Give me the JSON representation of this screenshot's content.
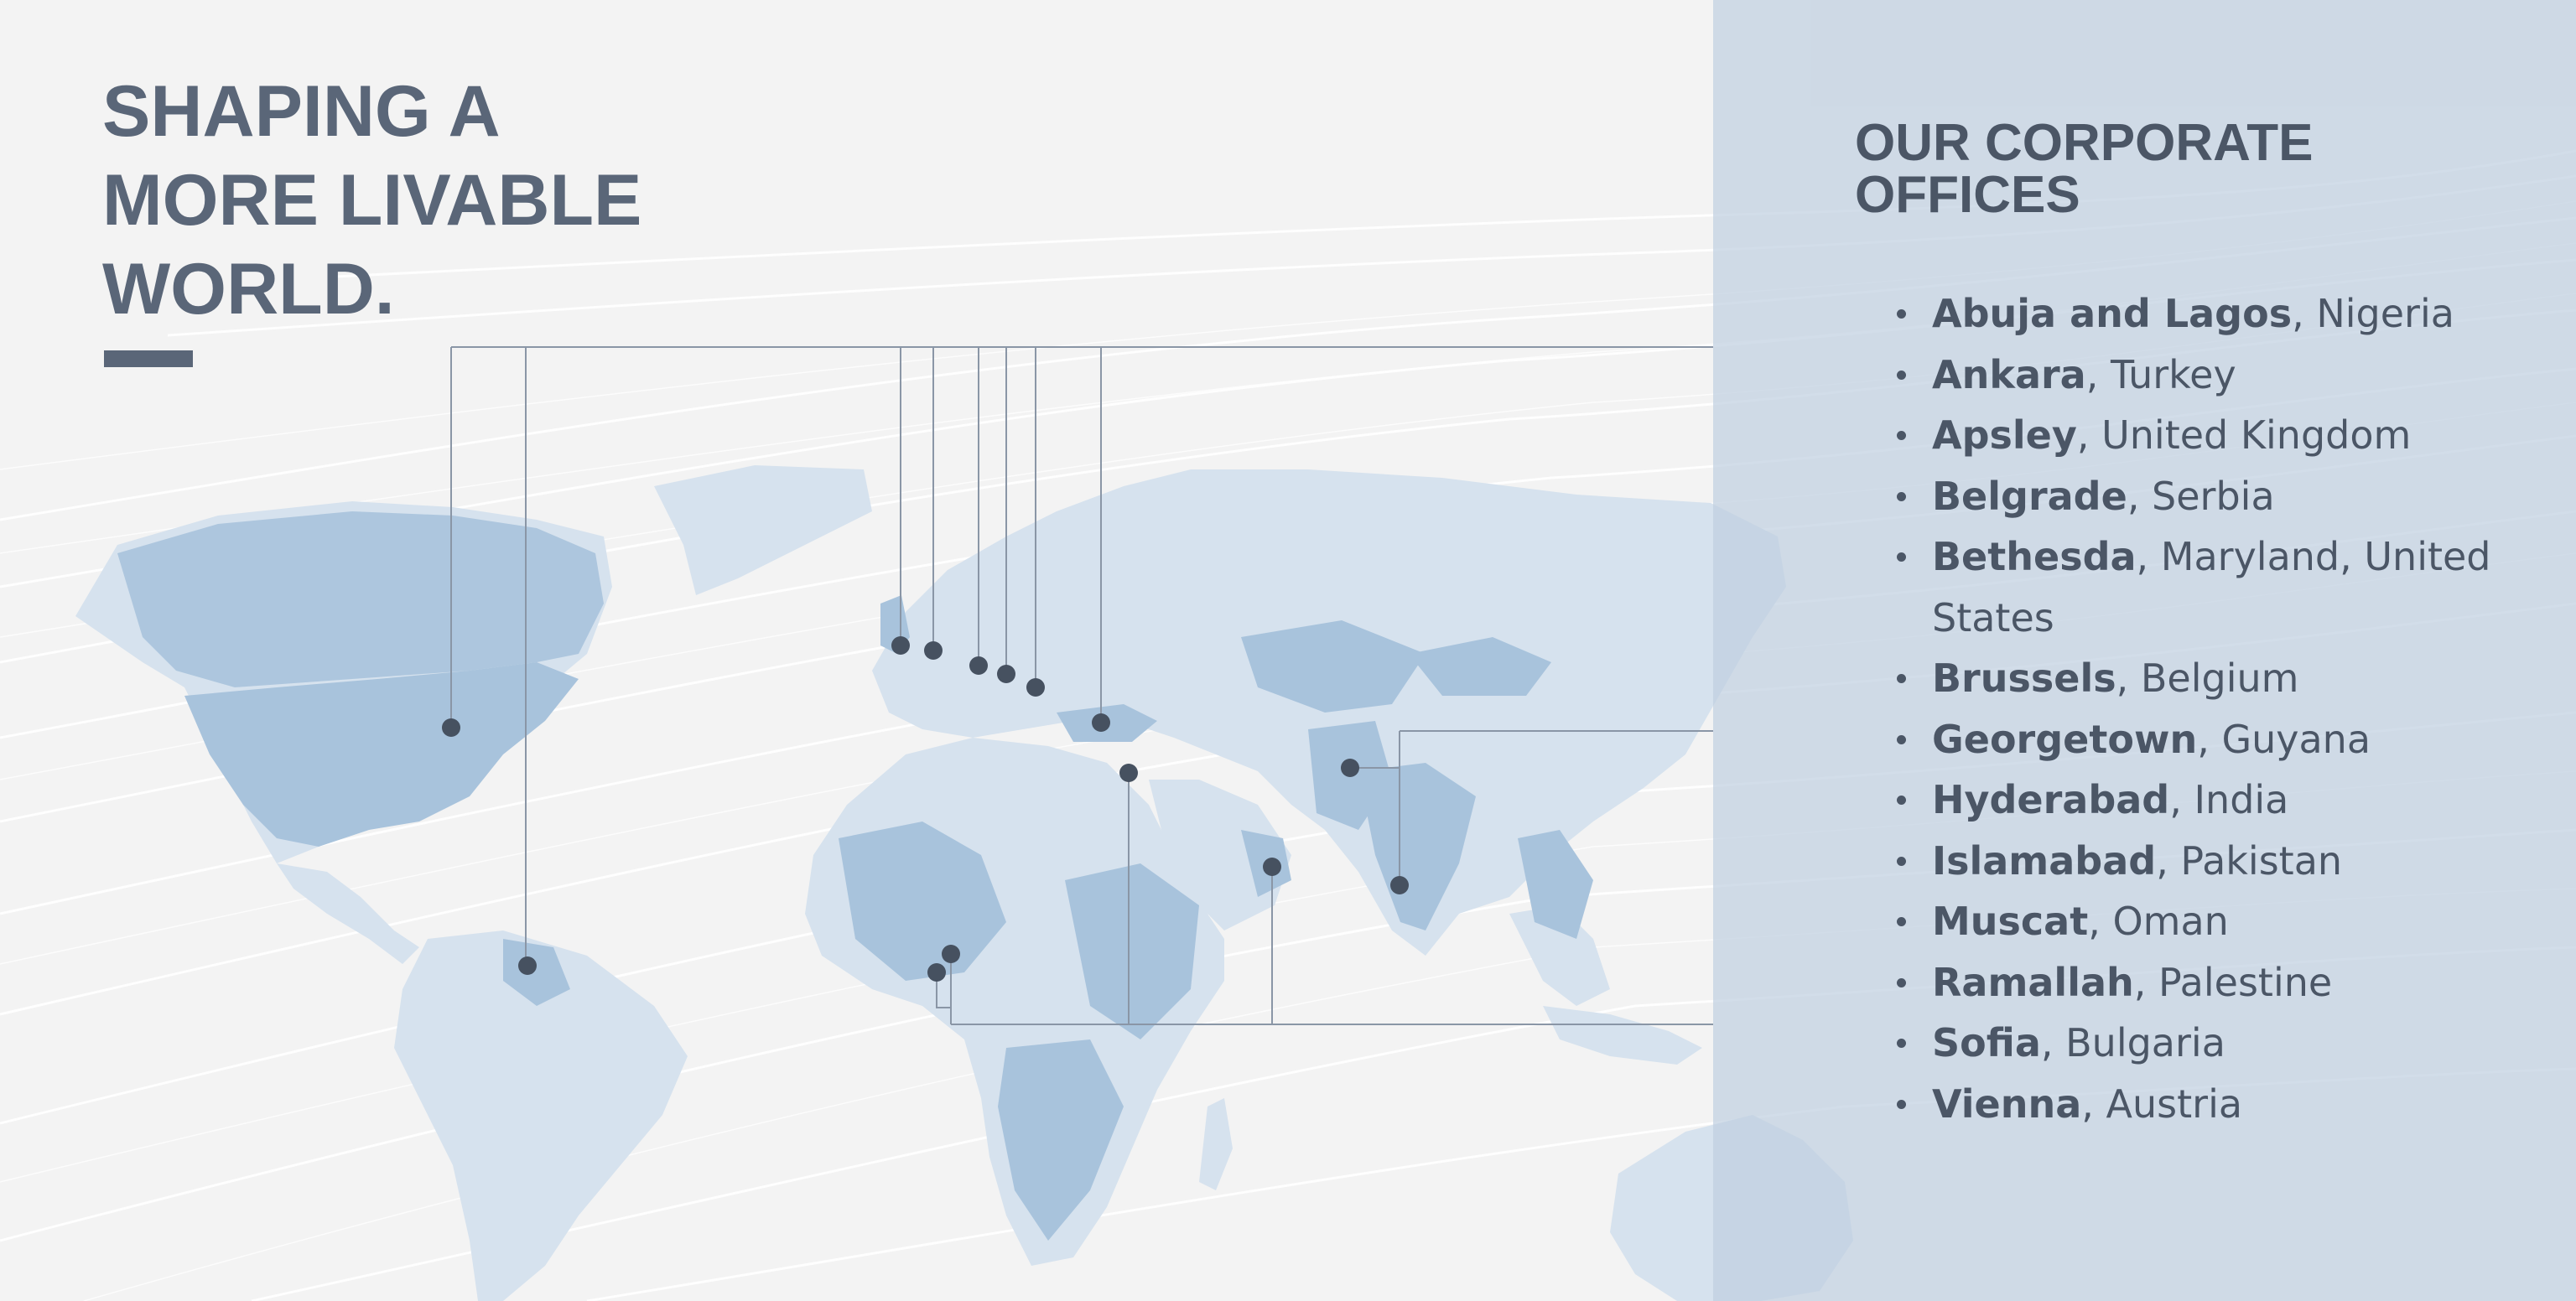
{
  "headline": {
    "lines": [
      "SHAPING A",
      "MORE LIVABLE",
      "WORLD."
    ]
  },
  "offices": {
    "title_lines": [
      "OUR CORPORATE",
      "OFFICES"
    ],
    "items": [
      {
        "city": "Abuja and Lagos",
        "rest": ", Nigeria"
      },
      {
        "city": "Ankara",
        "rest": ", Turkey"
      },
      {
        "city": "Apsley",
        "rest": ", United Kingdom"
      },
      {
        "city": "Belgrade",
        "rest": ", Serbia"
      },
      {
        "city": "Bethesda",
        "rest": ", Maryland, United States"
      },
      {
        "city": "Brussels",
        "rest": ", Belgium"
      },
      {
        "city": "Georgetown",
        "rest": ", Guyana"
      },
      {
        "city": "Hyderabad",
        "rest": ", India"
      },
      {
        "city": "Islamabad",
        "rest": ", Pakistan"
      },
      {
        "city": "Muscat",
        "rest": ", Oman"
      },
      {
        "city": "Ramallah",
        "rest": ", Palestine"
      },
      {
        "city": "Sofia",
        "rest": ", Bulgaria"
      },
      {
        "city": "Vienna",
        "rest": ", Austria"
      }
    ]
  },
  "map": {
    "markers": [
      {
        "name": "Bethesda",
        "lon": -77.1,
        "lat": 39.0
      },
      {
        "name": "Georgetown",
        "lon": -58.2,
        "lat": 6.8
      },
      {
        "name": "Apsley",
        "lon": -0.46,
        "lat": 51.7
      },
      {
        "name": "Brussels",
        "lon": 4.35,
        "lat": 50.85
      },
      {
        "name": "Vienna",
        "lon": 16.37,
        "lat": 48.21
      },
      {
        "name": "Belgrade",
        "lon": 20.46,
        "lat": 44.8
      },
      {
        "name": "Sofia",
        "lon": 23.32,
        "lat": 42.7
      },
      {
        "name": "Ankara",
        "lon": 32.86,
        "lat": 39.93
      },
      {
        "name": "Ramallah",
        "lon": 35.2,
        "lat": 31.9
      },
      {
        "name": "Muscat",
        "lon": 58.4,
        "lat": 23.6
      },
      {
        "name": "Islamabad",
        "lon": 73.05,
        "lat": 33.7
      },
      {
        "name": "Hyderabad",
        "lon": 78.5,
        "lat": 17.4
      },
      {
        "name": "Abuja",
        "lon": 7.4,
        "lat": 9.05
      },
      {
        "name": "Lagos",
        "lon": 3.4,
        "lat": 6.5
      }
    ]
  },
  "colors": {
    "background": "#f3f3f3",
    "land": "#d6e2ee",
    "land_highlight": "#a8c3dc",
    "panel": "#c8d5e3",
    "marker": "#465160",
    "connector": "#8a96a6",
    "heading": "#5a6678",
    "text": "#4b5666",
    "accent": "#5a6678"
  }
}
